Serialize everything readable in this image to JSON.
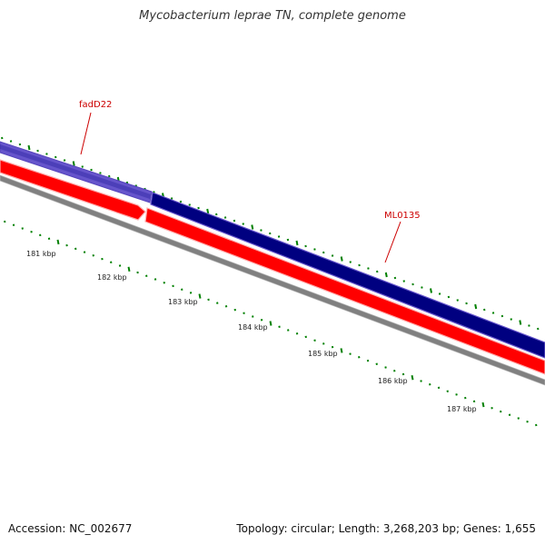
{
  "title": "Mycobacterium leprae TN, complete genome",
  "footer": {
    "accession": "Accession: NC_002677",
    "summary": "Topology: circular; Length: 3,268,203 bp; Genes: 1,655"
  },
  "scale_labels": [
    "181 kbp",
    "182 kbp",
    "183 kbp",
    "184 kbp",
    "185 kbp",
    "186 kbp",
    "187 kbp"
  ],
  "gene_labels": [
    "fadD22",
    "ML0135"
  ],
  "colors": {
    "forward_strand": "#000080",
    "forward_highlight": "#6655cc",
    "reverse_strand": "#ff0000",
    "backbone": "#808080",
    "ticks": "#008000",
    "gene_label": "#cc0000"
  }
}
